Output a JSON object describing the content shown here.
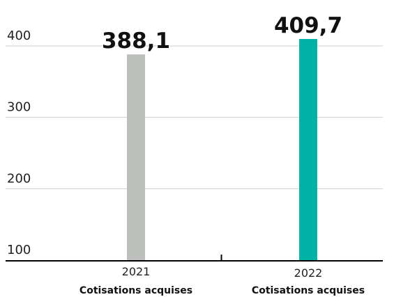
{
  "chart_data": {
    "type": "bar",
    "categories": [
      "2021",
      "2022"
    ],
    "category_sublabels": [
      "Cotisations acquises",
      "Cotisations acquises"
    ],
    "values": [
      388.1,
      409.7
    ],
    "value_labels": [
      "388,1",
      "409,7"
    ],
    "bar_colors": [
      "#bdbfbd",
      "#00b2a6"
    ],
    "grid_color": "#cfcfcf",
    "axis_color": "#000000",
    "yticks": [
      100,
      200,
      300,
      400
    ],
    "ylim": [
      100,
      400
    ],
    "grid": true
  }
}
